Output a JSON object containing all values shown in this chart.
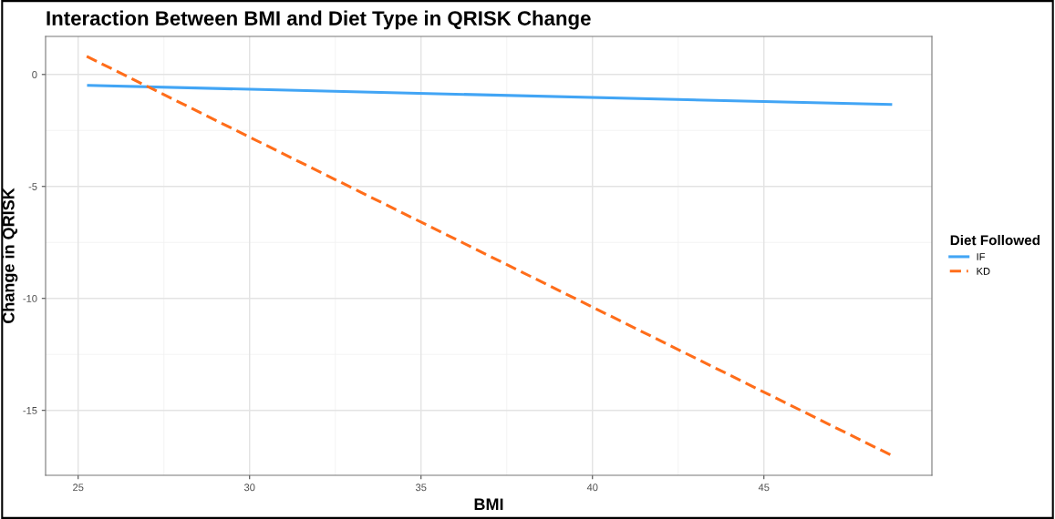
{
  "chart_data": {
    "type": "line",
    "title": "Interaction Between BMI and Diet Type in QRISK Change",
    "xlabel": "BMI",
    "ylabel": "Change in QRISK",
    "legend_title": "Diet Followed",
    "legend": "right",
    "xlim": [
      24.05,
      49.9
    ],
    "ylim": [
      -17.9,
      1.7
    ],
    "xticks": [
      25,
      30,
      35,
      40,
      45
    ],
    "yticks": [
      {
        "value": 0,
        "label": "0"
      },
      {
        "value": -5,
        "label": "-5"
      },
      {
        "value": -10,
        "label": "-10"
      },
      {
        "value": -15,
        "label": "-15"
      }
    ],
    "grid": true,
    "series": [
      {
        "name": "IF",
        "color": "#42a5f5",
        "line_style": "solid",
        "x": [
          25.3,
          48.7
        ],
        "values": [
          -0.49,
          -1.34
        ]
      },
      {
        "name": "KD",
        "color": "#ff6d1a",
        "line_style": "dashed",
        "x": [
          25.25,
          48.75
        ],
        "values": [
          0.81,
          -17.03
        ]
      }
    ]
  }
}
